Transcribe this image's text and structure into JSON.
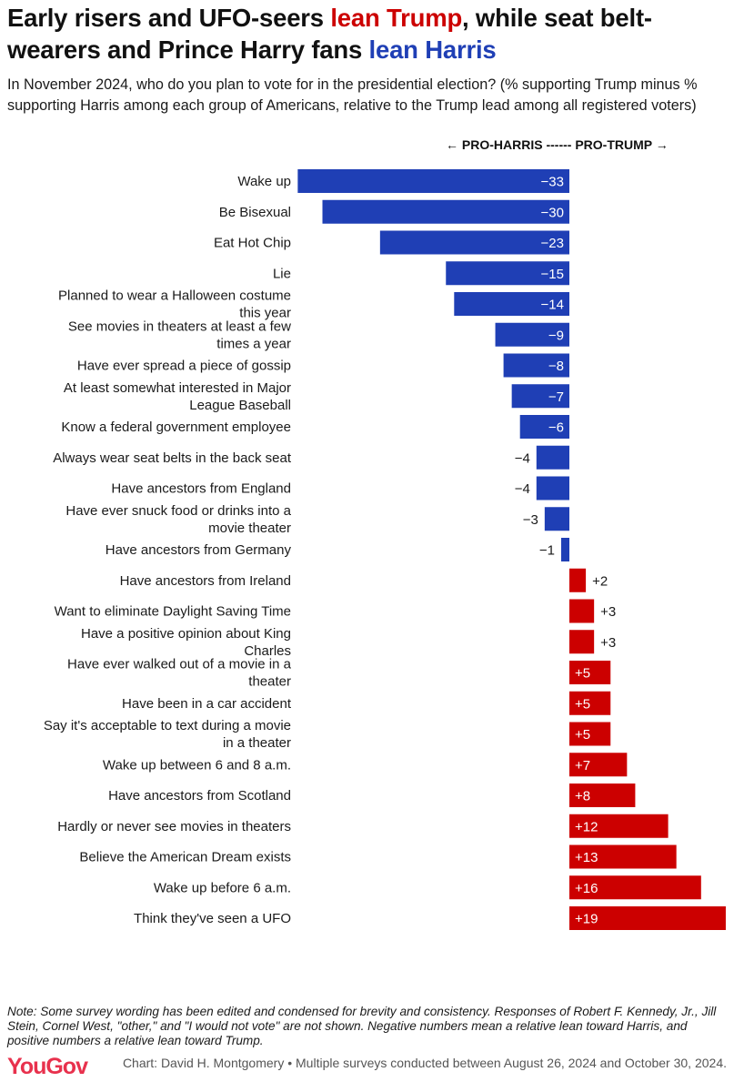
{
  "title": {
    "part1": "Early risers and UFO-seers ",
    "trump_phrase": "lean Trump",
    "part2": ", while seat belt-wearers and Prince Harry fans ",
    "harris_phrase": "lean Harris"
  },
  "subtitle": "In November 2024, who do you plan to vote for in the presidential election? (% supporting Trump minus % supporting Harris among each group of Americans, relative to the Trump lead among all registered voters)",
  "direction_label": {
    "left_arrow": "←",
    "harris": "PRO-HARRIS",
    "dashes": "------",
    "trump": "PRO-TRUMP",
    "right_arrow": "→"
  },
  "colors": {
    "harris": "#1f3fb5",
    "trump": "#cc0000"
  },
  "chart_data": {
    "type": "bar",
    "orientation": "horizontal",
    "categories": [
      "Wake up",
      "Be Bisexual",
      "Eat Hot Chip",
      "Lie",
      "Planned to wear a Halloween costume this year",
      "See movies in theaters at least a few times a year",
      "Have ever spread a piece of gossip",
      "At least somewhat interested in Major League Baseball",
      "Know a federal government employee",
      "Always wear seat belts in the back seat",
      "Have ancestors from England",
      "Have ever snuck food or drinks into a movie theater",
      "Have ancestors from Germany",
      "Have ancestors from Ireland",
      "Want to eliminate Daylight Saving Time",
      "Have a positive opinion about King Charles",
      "Have ever walked out of a movie in a theater",
      "Have been in a car accident",
      "Say it's acceptable to text during a movie in a theater",
      "Wake up between 6 and 8 a.m.",
      "Have ancestors from Scotland",
      "Hardly or never see movies in theaters",
      "Believe the American Dream exists",
      "Wake up before 6 a.m.",
      "Think they've seen a UFO"
    ],
    "label_lines": [
      [
        "Wake up"
      ],
      [
        "Be Bisexual"
      ],
      [
        "Eat Hot Chip"
      ],
      [
        "Lie"
      ],
      [
        "Planned to wear a Halloween costume",
        "this year"
      ],
      [
        "See movies in theaters at least a few",
        "times a year"
      ],
      [
        "Have ever spread a piece of gossip"
      ],
      [
        "At least somewhat interested in Major",
        "League Baseball"
      ],
      [
        "Know a federal government employee"
      ],
      [
        "Always wear seat belts in the back seat"
      ],
      [
        "Have ancestors from England"
      ],
      [
        "Have ever snuck food or drinks into a",
        "movie theater"
      ],
      [
        "Have ancestors from Germany"
      ],
      [
        "Have ancestors from Ireland"
      ],
      [
        "Want to eliminate Daylight Saving Time"
      ],
      [
        "Have a positive opinion about King",
        "Charles"
      ],
      [
        "Have ever walked out of a movie in a",
        "theater"
      ],
      [
        "Have been in a car accident"
      ],
      [
        "Say it's acceptable to text during a movie",
        "in a theater"
      ],
      [
        "Wake up between 6 and 8 a.m."
      ],
      [
        "Have ancestors from Scotland"
      ],
      [
        "Hardly or never see movies in theaters"
      ],
      [
        "Believe the American Dream exists"
      ],
      [
        "Wake up before 6 a.m."
      ],
      [
        "Think they've seen a UFO"
      ]
    ],
    "values": [
      -33,
      -30,
      -23,
      -15,
      -14,
      -9,
      -8,
      -7,
      -6,
      -4,
      -4,
      -3,
      -1,
      2,
      3,
      3,
      5,
      5,
      5,
      7,
      8,
      12,
      13,
      16,
      19
    ],
    "value_labels": [
      "−33",
      "−30",
      "−23",
      "−15",
      "−14",
      "−9",
      "−8",
      "−7",
      "−6",
      "−4",
      "−4",
      "−3",
      "−1",
      "+2",
      "+3",
      "+3",
      "+5",
      "+5",
      "+5",
      "+7",
      "+8",
      "+12",
      "+13",
      "+16",
      "+19"
    ],
    "xlim": [
      -33,
      19
    ],
    "grid": false,
    "legend": "none"
  },
  "note": "Note: Some survey wording has been edited and condensed for brevity and consistency. Responses of Robert F. Kennedy, Jr., Jill Stein, Cornel West, \"other,\" and \"I would not vote\" are not shown. Negative numbers mean a relative lean toward Harris, and positive numbers a relative lean toward Trump.",
  "logo_text": "YouGov",
  "source": "Chart: David H. Montgomery • Multiple surveys conducted between August 26, 2024 and October 30, 2024."
}
